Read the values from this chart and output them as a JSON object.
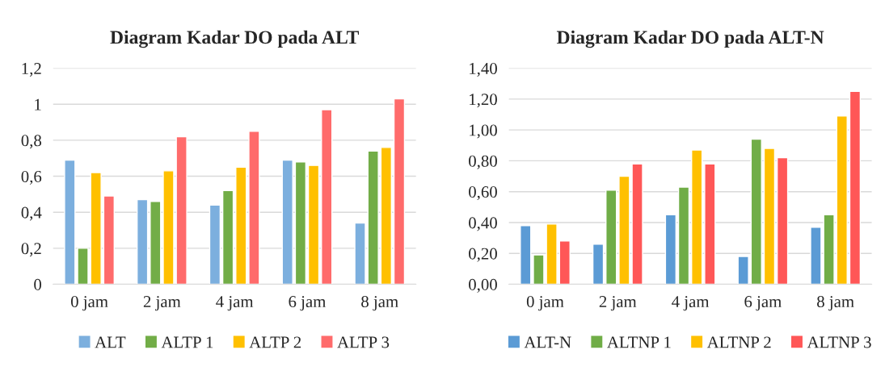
{
  "chart_data": [
    {
      "type": "bar",
      "title": "Diagram Kadar DO pada ALT",
      "categories": [
        "0 jam",
        "2 jam",
        "4 jam",
        "6 jam",
        "8 jam"
      ],
      "series": [
        {
          "name": "ALT",
          "color": "#7cafde",
          "values": [
            0.69,
            0.47,
            0.44,
            0.69,
            0.34
          ]
        },
        {
          "name": "ALTP 1",
          "color": "#72ad47",
          "values": [
            0.2,
            0.46,
            0.52,
            0.68,
            0.74
          ]
        },
        {
          "name": "ALTP 2",
          "color": "#ffc000",
          "values": [
            0.62,
            0.63,
            0.65,
            0.66,
            0.76
          ]
        },
        {
          "name": "ALTP 3",
          "color": "#ff6b6b",
          "values": [
            0.49,
            0.82,
            0.85,
            0.97,
            1.03
          ]
        }
      ],
      "ylim": [
        0,
        1.2
      ],
      "yticks": [
        0,
        {
          "value": 0.2,
          "label": "0,2"
        },
        {
          "value": 0.4,
          "label": "0,4"
        },
        {
          "value": 0.6,
          "label": "0,6"
        },
        {
          "value": 0.8,
          "label": "0,8"
        },
        1,
        {
          "value": 1.2,
          "label": "1,2"
        }
      ],
      "grid": "y",
      "legend": "bottom"
    },
    {
      "type": "bar",
      "title": "Diagram Kadar DO pada ALT-N",
      "categories": [
        "0 jam",
        "2 jam",
        "4 jam",
        "6 jam",
        "8 jam"
      ],
      "series": [
        {
          "name": "ALT-N",
          "color": "#5b9bd5",
          "values": [
            0.38,
            0.26,
            0.45,
            0.18,
            0.37
          ]
        },
        {
          "name": "ALTNP 1",
          "color": "#70ad47",
          "values": [
            0.19,
            0.61,
            0.63,
            0.94,
            0.45
          ]
        },
        {
          "name": "ALTNP 2",
          "color": "#ffc000",
          "values": [
            0.39,
            0.7,
            0.87,
            0.88,
            1.09
          ]
        },
        {
          "name": "ALTNP 3",
          "color": "#ff5757",
          "values": [
            0.28,
            0.78,
            0.78,
            0.82,
            1.25
          ]
        }
      ],
      "ylim": [
        0,
        1.4
      ],
      "yticks": [
        {
          "value": 0,
          "label": "0,00"
        },
        {
          "value": 0.2,
          "label": "0,20"
        },
        {
          "value": 0.4,
          "label": "0,40"
        },
        {
          "value": 0.6,
          "label": "0,60"
        },
        {
          "value": 0.8,
          "label": "0,80"
        },
        {
          "value": 1.0,
          "label": "1,00"
        },
        {
          "value": 1.2,
          "label": "1,20"
        },
        {
          "value": 1.4,
          "label": "1,40"
        }
      ],
      "grid": "y",
      "legend": "bottom"
    }
  ]
}
